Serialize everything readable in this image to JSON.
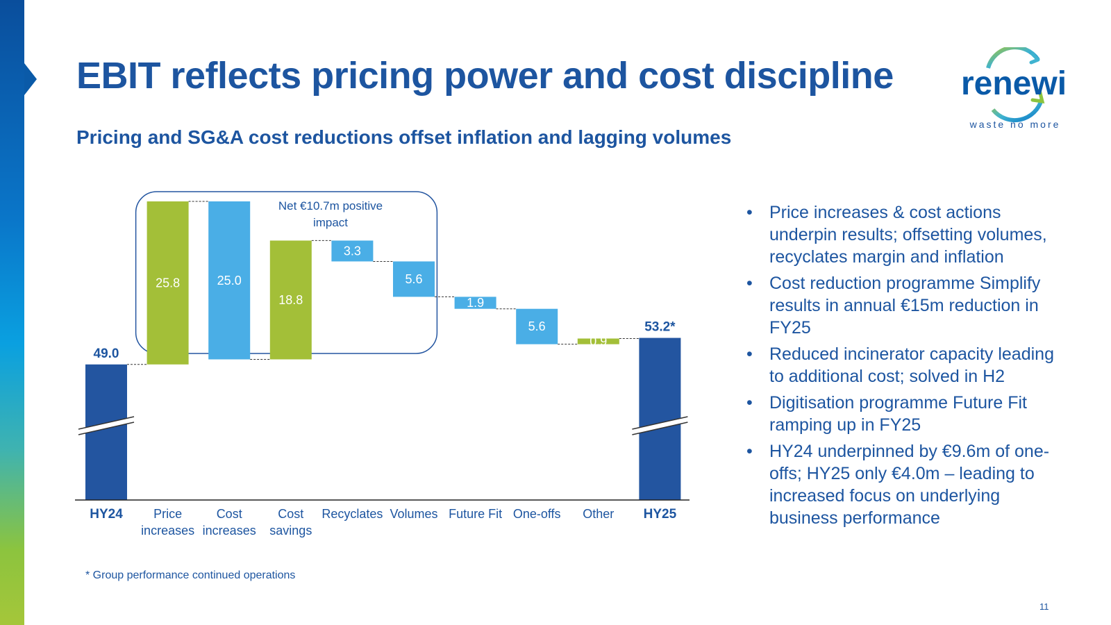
{
  "slide": {
    "title": "EBIT reflects pricing power and cost discipline",
    "subtitle": "Pricing and SG&A cost reductions offset inflation and lagging volumes",
    "footnote": "* Group performance continued operations",
    "page_number": "11"
  },
  "logo": {
    "wordmark": "renewi",
    "tagline": "waste no more"
  },
  "colors": {
    "navy": "#2355a0",
    "green": "#a3bf38",
    "light_blue": "#4aaee6",
    "text": "#1d55a0"
  },
  "bullets": [
    "Price increases & cost actions underpin results; offsetting volumes, recyclates margin and inflation",
    "Cost reduction programme Simplify results in annual €15m reduction in FY25",
    "Reduced incinerator capacity leading to additional cost; solved in H2",
    "Digitisation programme Future Fit ramping up in FY25",
    "HY24 underpinned by €9.6m of one-offs; HY25 only €4.0m – leading to increased focus on underlying business performance"
  ],
  "chart_data": {
    "type": "waterfall",
    "unit": "€m",
    "axis_break": true,
    "annotation": "Net €10.7m positive impact",
    "categories": [
      {
        "label": "HY24",
        "label_lines": [
          "HY24"
        ],
        "kind": "total",
        "value": 49.0,
        "display": "49.0",
        "color": "navy"
      },
      {
        "label": "Price increases",
        "label_lines": [
          "Price",
          "increases"
        ],
        "kind": "delta",
        "value": 25.8,
        "display": "25.8",
        "color": "green"
      },
      {
        "label": "Cost increases",
        "label_lines": [
          "Cost",
          "increases"
        ],
        "kind": "delta",
        "value": -25.0,
        "display": "25.0",
        "color": "light_blue"
      },
      {
        "label": "Cost savings",
        "label_lines": [
          "Cost",
          "savings"
        ],
        "kind": "delta",
        "value": 18.8,
        "display": "18.8",
        "color": "green"
      },
      {
        "label": "Recyclates",
        "label_lines": [
          "Recyclates"
        ],
        "kind": "delta",
        "value": -3.3,
        "display": "3.3",
        "color": "light_blue"
      },
      {
        "label": "Volumes",
        "label_lines": [
          "Volumes"
        ],
        "kind": "delta",
        "value": -5.6,
        "display": "5.6",
        "color": "light_blue"
      },
      {
        "label": "Future Fit",
        "label_lines": [
          "Future Fit"
        ],
        "kind": "delta",
        "value": -1.9,
        "display": "1.9",
        "color": "light_blue"
      },
      {
        "label": "One-offs",
        "label_lines": [
          "One-offs"
        ],
        "kind": "delta",
        "value": -5.6,
        "display": "5.6",
        "color": "light_blue"
      },
      {
        "label": "Other",
        "label_lines": [
          "Other"
        ],
        "kind": "delta",
        "value": 0.9,
        "display": "0.9",
        "color": "green"
      },
      {
        "label": "HY25",
        "label_lines": [
          "HY25"
        ],
        "kind": "total",
        "value": 53.2,
        "display": "53.2*",
        "color": "navy"
      }
    ]
  }
}
